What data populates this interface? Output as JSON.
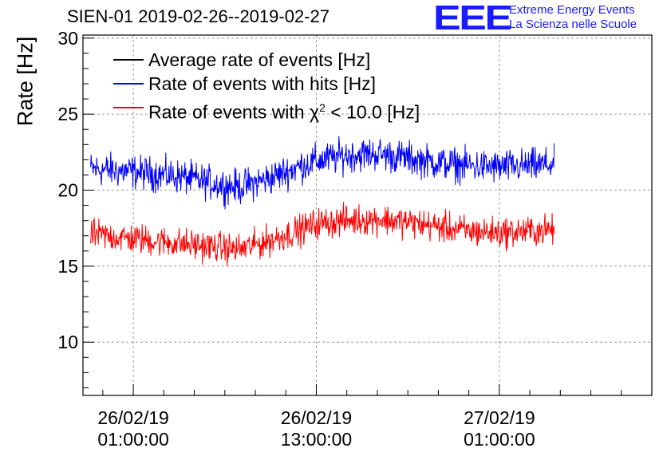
{
  "header": {
    "title": "SIEN-01 2019-02-26--2019-02-27"
  },
  "logo": {
    "mark": "EEE",
    "line1": "Extreme Energy Events",
    "line2": "La Scienza nelle Scuole",
    "color": "#1a1aff"
  },
  "chart_data": {
    "type": "line",
    "title": "SIEN-01 2019-02-26--2019-02-27",
    "xlabel": "",
    "ylabel": "Rate [Hz]",
    "ylim": [
      6.5,
      30.2
    ],
    "xlim_hours": [
      -3.3,
      34.0
    ],
    "y_ticks": [
      10,
      15,
      20,
      25,
      30
    ],
    "x_ticks": [
      {
        "hours": 0,
        "line1": "26/02/19",
        "line2": "01:00:00"
      },
      {
        "hours": 12,
        "line1": "26/02/19",
        "line2": "13:00:00"
      },
      {
        "hours": 24,
        "line1": "27/02/19",
        "line2": "01:00:00"
      }
    ],
    "grid": true,
    "legend_position": "top-left",
    "x_unit": "hours since 26/02/19 01:00:00",
    "series": [
      {
        "name": "Average rate of events [Hz]",
        "color": "#000000",
        "noise": 0.0,
        "x": [],
        "values": []
      },
      {
        "name": "Rate of events with hits [Hz]",
        "color": "#0000ff",
        "noise": 0.55,
        "x": [
          -2.8,
          0,
          3,
          6,
          7,
          9,
          11,
          12,
          14,
          16,
          18,
          20,
          22,
          24,
          26,
          27.6
        ],
        "values": [
          21.4,
          21.2,
          20.9,
          20.3,
          20.2,
          20.8,
          21.6,
          21.9,
          22.3,
          22.4,
          22.1,
          21.8,
          21.6,
          21.5,
          21.6,
          21.7
        ]
      },
      {
        "name": "Rate of events with χ² < 10.0 [Hz]",
        "label_prefix": "Rate of events with ",
        "label_chi": "χ",
        "label_sup": "2",
        "label_suffix": " < 10.0 [Hz]",
        "color": "#ff0000",
        "noise": 0.5,
        "x": [
          -2.8,
          0,
          3,
          6,
          7,
          9,
          11,
          12,
          14,
          16,
          18,
          20,
          22,
          24,
          26,
          27.6
        ],
        "values": [
          17.1,
          16.8,
          16.5,
          16.2,
          16.1,
          16.7,
          17.4,
          17.8,
          18.0,
          18.1,
          17.9,
          17.6,
          17.3,
          17.2,
          17.3,
          17.4
        ]
      }
    ]
  }
}
